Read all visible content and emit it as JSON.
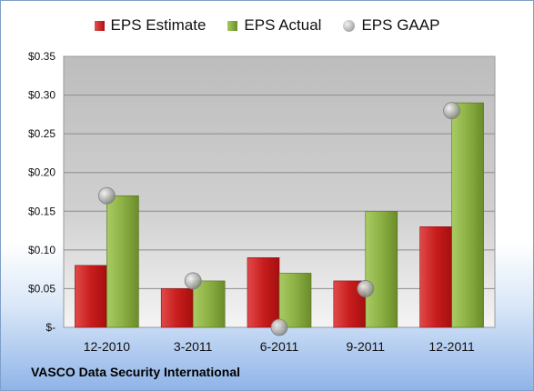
{
  "chart_data": {
    "type": "bar",
    "categories": [
      "12-2010",
      "3-2011",
      "6-2011",
      "9-2011",
      "12-2011"
    ],
    "series": [
      {
        "name": "EPS Estimate",
        "type": "bar",
        "color": "#c81d1d",
        "values": [
          0.08,
          0.05,
          0.09,
          0.06,
          0.13
        ]
      },
      {
        "name": "EPS Actual",
        "type": "bar",
        "color": "#8cb043",
        "values": [
          0.17,
          0.06,
          0.07,
          0.15,
          0.29
        ]
      },
      {
        "name": "EPS GAAP",
        "type": "scatter",
        "color": "#b0b0b0",
        "values": [
          0.17,
          0.06,
          0.0,
          0.05,
          0.28
        ]
      }
    ],
    "ylim": [
      0,
      0.35
    ],
    "yticks": [
      0,
      0.05,
      0.1,
      0.15,
      0.2,
      0.25,
      0.3,
      0.35
    ],
    "ytick_labels": [
      "$-",
      "$0.05",
      "$0.10",
      "$0.15",
      "$0.20",
      "$0.25",
      "$0.30",
      "$0.35"
    ],
    "grid": true,
    "legend_position": "top"
  },
  "legend": {
    "estimate": "EPS Estimate",
    "actual": "EPS Actual",
    "gaap": "EPS GAAP"
  },
  "footer": {
    "company": "VASCO Data Security International"
  }
}
